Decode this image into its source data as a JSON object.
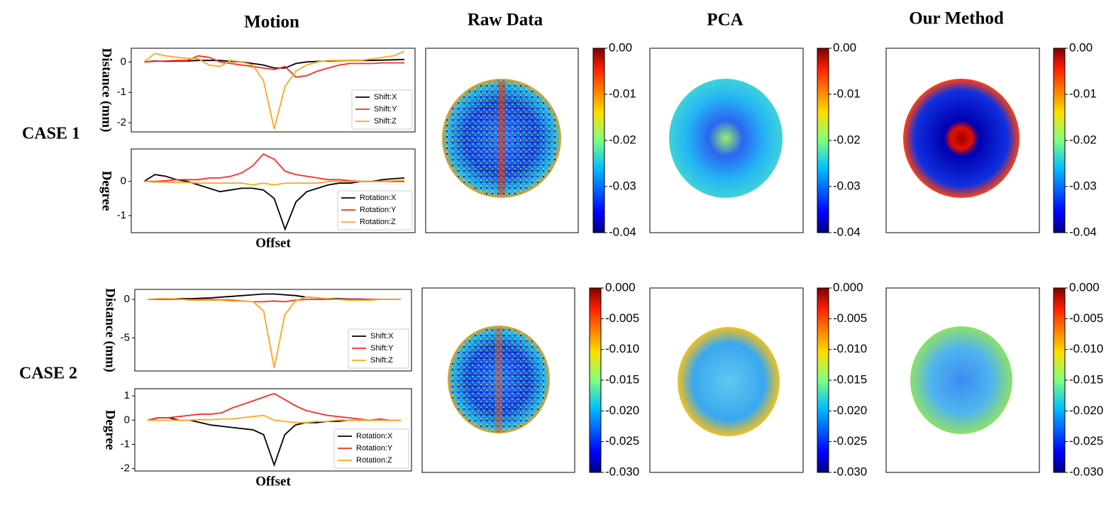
{
  "column_titles": [
    "Motion",
    "Raw Data",
    "PCA",
    "Our Method"
  ],
  "row_labels": [
    "CASE 1",
    "CASE 2"
  ],
  "chart_data": [
    {
      "type": "line",
      "ylabel": "Distance (mm)",
      "legend": "lower right",
      "categories": [
        null,
        null,
        null,
        null,
        null,
        null,
        null,
        null,
        null,
        null,
        null,
        null,
        null,
        null,
        null,
        null,
        null,
        null,
        null,
        null,
        null,
        null,
        null,
        null,
        null
      ],
      "ylim": [
        -2.3,
        0.45
      ],
      "yticks": [
        0,
        -1,
        -2
      ],
      "series": [
        {
          "name": "Shift:X",
          "color": "#000000",
          "values": [
            0,
            0.03,
            0.02,
            0.03,
            0.03,
            0.05,
            0.05,
            0.05,
            0.02,
            0,
            -0.05,
            -0.1,
            -0.2,
            -0.2,
            -0.05,
            0,
            0.02,
            0.03,
            0.04,
            0.05,
            0.05,
            0.05,
            0.06,
            0.07,
            0.08
          ]
        },
        {
          "name": "Shift:Y",
          "color": "#ff2a1a",
          "values": [
            0,
            0.02,
            0.03,
            0.05,
            0.05,
            0.2,
            0.15,
            0,
            -0.05,
            -0.1,
            -0.15,
            -0.2,
            -0.25,
            -0.15,
            -0.5,
            -0.45,
            -0.3,
            -0.2,
            -0.1,
            -0.05,
            -0.05,
            -0.05,
            -0.03,
            -0.03,
            -0.03
          ]
        },
        {
          "name": "Shift:Z",
          "color": "#ffa51f",
          "values": [
            0,
            0.28,
            0.2,
            0.15,
            0.12,
            0.1,
            -0.1,
            -0.15,
            0.05,
            0,
            -0.1,
            -0.6,
            -2.2,
            -0.8,
            -0.3,
            -0.1,
            0,
            0.05,
            0.05,
            0.05,
            0.05,
            0.1,
            0.15,
            0.2,
            0.35
          ]
        }
      ]
    },
    {
      "type": "line",
      "ylabel": "Degree",
      "xlabel": "Offset",
      "legend": "lower right",
      "categories": [
        null,
        null,
        null,
        null,
        null,
        null,
        null,
        null,
        null,
        null,
        null,
        null,
        null,
        null,
        null,
        null,
        null,
        null,
        null,
        null,
        null,
        null,
        null,
        null,
        null
      ],
      "ylim": [
        -1.5,
        0.95
      ],
      "yticks": [
        0,
        -1
      ],
      "series": [
        {
          "name": "Rotation:X",
          "color": "#000000",
          "values": [
            0,
            0.2,
            0.15,
            0.05,
            0,
            -0.1,
            -0.2,
            -0.3,
            -0.25,
            -0.2,
            -0.2,
            -0.25,
            -0.5,
            -1.4,
            -0.6,
            -0.3,
            -0.2,
            -0.1,
            -0.05,
            -0.05,
            0,
            0,
            0.05,
            0.08,
            0.1
          ]
        },
        {
          "name": "Rotation:Y",
          "color": "#ff2a1a",
          "values": [
            0,
            0,
            0.02,
            0.05,
            0.05,
            0.05,
            0.1,
            0.1,
            0.15,
            0.25,
            0.45,
            0.8,
            0.65,
            0.3,
            0.2,
            0.15,
            0.1,
            0.05,
            0.05,
            0.02,
            0,
            0,
            0,
            0,
            0
          ]
        },
        {
          "name": "Rotation:Z",
          "color": "#ffa51f",
          "values": [
            0,
            -0.02,
            -0.02,
            -0.03,
            -0.03,
            -0.05,
            -0.05,
            -0.05,
            -0.05,
            -0.05,
            -0.1,
            -0.05,
            -0.1,
            -0.05,
            -0.05,
            -0.05,
            -0.05,
            0,
            0,
            0,
            0,
            0,
            0,
            0.02,
            0.03
          ]
        }
      ]
    },
    {
      "type": "line",
      "ylabel": "Distance (mm)",
      "legend": "lower right",
      "categories": [
        null,
        null,
        null,
        null,
        null,
        null,
        null,
        null,
        null,
        null,
        null,
        null,
        null,
        null,
        null,
        null,
        null,
        null,
        null,
        null,
        null,
        null,
        null,
        null,
        null
      ],
      "ylim": [
        -9.3,
        1.3
      ],
      "yticks": [
        0,
        -5
      ],
      "series": [
        {
          "name": "Shift:X",
          "color": "#000000",
          "values": [
            0,
            0,
            0.05,
            0.1,
            0.1,
            0.15,
            0.2,
            0.3,
            0.4,
            0.5,
            0.6,
            0.7,
            0.7,
            0.6,
            0.5,
            0.3,
            0.2,
            0.1,
            0.1,
            0.05,
            0.05,
            0,
            0,
            0,
            0
          ]
        },
        {
          "name": "Shift:Y",
          "color": "#ff2a1a",
          "values": [
            0,
            0,
            0,
            0,
            0,
            0,
            0,
            -0.05,
            -0.1,
            -0.2,
            -0.3,
            -0.3,
            -0.2,
            -0.3,
            -0.1,
            0,
            0,
            0,
            0,
            0,
            0,
            0,
            0,
            0,
            0
          ]
        },
        {
          "name": "Shift:Z",
          "color": "#ffa51f",
          "values": [
            0,
            0.1,
            0.1,
            0.05,
            -0.1,
            -0.1,
            -0.1,
            -0.1,
            -0.2,
            -0.2,
            -0.3,
            -1.5,
            -8.9,
            -2,
            -0.2,
            0.3,
            0.2,
            0.1,
            0,
            -0.1,
            -0.1,
            -0.1,
            0,
            0,
            0
          ]
        }
      ]
    },
    {
      "type": "line",
      "ylabel": "Degree",
      "xlabel": "Offset",
      "legend": "lower right",
      "categories": [
        null,
        null,
        null,
        null,
        null,
        null,
        null,
        null,
        null,
        null,
        null,
        null,
        null,
        null,
        null,
        null,
        null,
        null,
        null,
        null,
        null,
        null,
        null,
        null,
        null
      ],
      "ylim": [
        -2.1,
        1.3
      ],
      "yticks": [
        1,
        0,
        -1,
        -2
      ],
      "series": [
        {
          "name": "Rotation:X",
          "color": "#000000",
          "values": [
            0,
            0.1,
            0.1,
            0,
            0,
            -0.1,
            -0.2,
            -0.25,
            -0.3,
            -0.35,
            -0.4,
            -0.6,
            -1.85,
            -0.6,
            -0.2,
            -0.1,
            -0.1,
            -0.05,
            -0.05,
            0,
            0,
            0,
            0,
            0,
            0
          ]
        },
        {
          "name": "Rotation:Y",
          "color": "#ff2a1a",
          "values": [
            0,
            0.1,
            0.1,
            0.15,
            0.2,
            0.25,
            0.25,
            0.3,
            0.5,
            0.65,
            0.8,
            0.95,
            1.1,
            0.85,
            0.6,
            0.4,
            0.3,
            0.2,
            0.15,
            0.1,
            0.05,
            0,
            0.05,
            0,
            0
          ]
        },
        {
          "name": "Rotation:Z",
          "color": "#ffa51f",
          "values": [
            0,
            0,
            0,
            0,
            0,
            0.02,
            0.02,
            0.05,
            0.05,
            0.1,
            0.15,
            0.2,
            0,
            -0.05,
            -0.1,
            -0.1,
            -0.05,
            -0.05,
            0,
            0,
            0,
            0,
            0,
            0,
            0
          ]
        }
      ]
    },
    {
      "type": "colorbar",
      "ylim": [
        -0.04,
        0
      ],
      "yticks": [
        {
          "value": 0,
          "label": "0.00"
        },
        -0.01,
        -0.02,
        -0.03,
        -0.04
      ]
    },
    {
      "type": "colorbar",
      "ylim": [
        -0.04,
        0
      ],
      "yticks": [
        {
          "value": 0,
          "label": "0.00"
        },
        -0.01,
        -0.02,
        -0.03,
        -0.04
      ]
    },
    {
      "type": "colorbar",
      "ylim": [
        -0.04,
        0
      ],
      "yticks": [
        {
          "value": 0,
          "label": "0.00"
        },
        -0.01,
        -0.02,
        -0.03,
        -0.04
      ]
    },
    {
      "type": "colorbar",
      "ylim": [
        -0.03,
        0
      ],
      "yticks": [
        {
          "value": 0,
          "label": "0.000"
        },
        -0.005,
        {
          "value": -0.01,
          "label": "-0.010"
        },
        -0.015,
        {
          "value": -0.02,
          "label": "-0.020"
        },
        -0.025,
        {
          "value": -0.03,
          "label": "-0.030"
        }
      ]
    },
    {
      "type": "colorbar",
      "ylim": [
        -0.03,
        0
      ],
      "yticks": [
        {
          "value": 0,
          "label": "0.000"
        },
        -0.005,
        {
          "value": -0.01,
          "label": "-0.010"
        },
        -0.015,
        {
          "value": -0.02,
          "label": "-0.020"
        },
        -0.025,
        {
          "value": -0.03,
          "label": "-0.030"
        }
      ]
    },
    {
      "type": "colorbar",
      "ylim": [
        -0.03,
        0
      ],
      "yticks": [
        {
          "value": 0,
          "label": "0.000"
        },
        -0.005,
        {
          "value": -0.01,
          "label": "-0.010"
        },
        -0.015,
        {
          "value": -0.02,
          "label": "-0.020"
        },
        -0.025,
        {
          "value": -0.03,
          "label": "-0.030"
        }
      ]
    }
  ]
}
